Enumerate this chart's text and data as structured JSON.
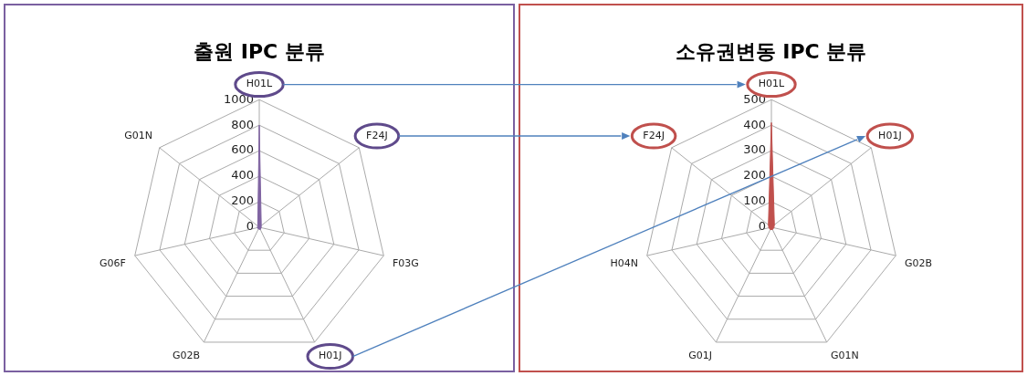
{
  "chart_data": [
    {
      "type": "radar",
      "title": "출원 IPC 분류",
      "categories": [
        "H01L",
        "F24J",
        "F03G",
        "H01J",
        "G02B",
        "G06F",
        "G01N"
      ],
      "series": [
        {
          "color": "#8064a2",
          "values": [
            800,
            20,
            15,
            20,
            15,
            15,
            15
          ]
        }
      ],
      "ylim": [
        0,
        1000
      ],
      "yticks": [
        0,
        200,
        400,
        600,
        800,
        1000
      ],
      "grid": true,
      "legend": false
    },
    {
      "type": "radar",
      "title": "소유권변동 IPC 분류",
      "categories": [
        "H01L",
        "H01J",
        "G02B",
        "G01N",
        "G01J",
        "H04N",
        "F24J"
      ],
      "series": [
        {
          "color": "#c0504d",
          "values": [
            410,
            15,
            10,
            10,
            10,
            10,
            15
          ]
        }
      ],
      "ylim": [
        0,
        500
      ],
      "yticks": [
        0,
        100,
        200,
        300,
        400,
        500
      ],
      "grid": true,
      "legend": false
    }
  ]
}
